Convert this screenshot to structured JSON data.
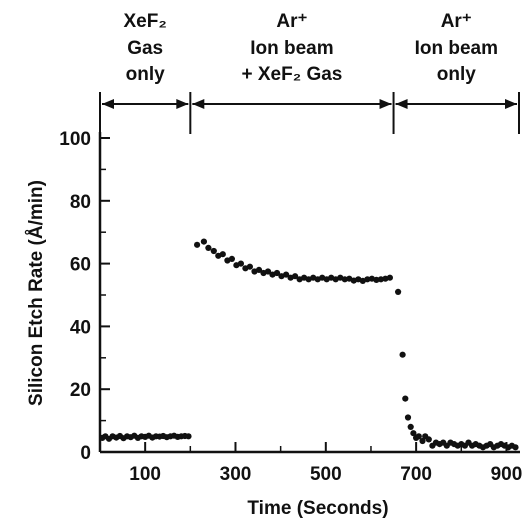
{
  "chart_data": {
    "type": "scatter",
    "xlabel": "Time (Seconds)",
    "ylabel": "Silicon Etch Rate (Å/min)",
    "xlim": [
      0,
      930
    ],
    "ylim": [
      0,
      100
    ],
    "x_ticks": [
      100,
      300,
      500,
      700,
      900
    ],
    "y_ticks": [
      0,
      20,
      40,
      60,
      80,
      100
    ],
    "phase_boundaries": [
      200,
      650
    ],
    "phases": [
      {
        "x_range": [
          0,
          200
        ],
        "lines": [
          "XeF₂",
          "Gas",
          "only"
        ]
      },
      {
        "x_range": [
          200,
          650
        ],
        "lines": [
          "Ar⁺",
          "Ion beam",
          "+ XeF₂ Gas"
        ]
      },
      {
        "x_range": [
          650,
          930
        ],
        "lines": [
          "Ar⁺",
          "Ion beam",
          "only"
        ]
      }
    ],
    "series": [
      {
        "color": "#111111",
        "points": [
          [
            5,
            4.5
          ],
          [
            12,
            5
          ],
          [
            20,
            4.2
          ],
          [
            28,
            5
          ],
          [
            36,
            4.6
          ],
          [
            44,
            5.1
          ],
          [
            52,
            4.4
          ],
          [
            60,
            5
          ],
          [
            68,
            4.7
          ],
          [
            76,
            5.2
          ],
          [
            84,
            4.5
          ],
          [
            92,
            5
          ],
          [
            100,
            4.8
          ],
          [
            108,
            5.2
          ],
          [
            116,
            4.6
          ],
          [
            124,
            5
          ],
          [
            132,
            4.9
          ],
          [
            140,
            5.1
          ],
          [
            148,
            4.7
          ],
          [
            156,
            5
          ],
          [
            164,
            5.2
          ],
          [
            172,
            4.8
          ],
          [
            180,
            5
          ],
          [
            188,
            5.1
          ],
          [
            196,
            5
          ],
          [
            215,
            66
          ],
          [
            230,
            67
          ],
          [
            240,
            65
          ],
          [
            252,
            64
          ],
          [
            262,
            62.5
          ],
          [
            272,
            63
          ],
          [
            282,
            61
          ],
          [
            292,
            61.5
          ],
          [
            302,
            59.5
          ],
          [
            312,
            60
          ],
          [
            322,
            58.5
          ],
          [
            332,
            59
          ],
          [
            342,
            57.5
          ],
          [
            352,
            58
          ],
          [
            362,
            57
          ],
          [
            372,
            57.5
          ],
          [
            382,
            56.5
          ],
          [
            392,
            57
          ],
          [
            402,
            56
          ],
          [
            412,
            56.5
          ],
          [
            422,
            55.5
          ],
          [
            432,
            56
          ],
          [
            442,
            55
          ],
          [
            452,
            55.5
          ],
          [
            462,
            55
          ],
          [
            472,
            55.5
          ],
          [
            482,
            55
          ],
          [
            492,
            55.5
          ],
          [
            502,
            55
          ],
          [
            512,
            55.5
          ],
          [
            522,
            55
          ],
          [
            532,
            55.5
          ],
          [
            542,
            55
          ],
          [
            552,
            55.2
          ],
          [
            562,
            54.6
          ],
          [
            572,
            55
          ],
          [
            582,
            54.5
          ],
          [
            592,
            55
          ],
          [
            602,
            55.2
          ],
          [
            612,
            54.8
          ],
          [
            622,
            55
          ],
          [
            632,
            55.2
          ],
          [
            642,
            55.5
          ],
          [
            660,
            51
          ],
          [
            670,
            31
          ],
          [
            676,
            17
          ],
          [
            682,
            11
          ],
          [
            688,
            8
          ],
          [
            694,
            6
          ],
          [
            700,
            4.5
          ],
          [
            706,
            5
          ],
          [
            714,
            3.5
          ],
          [
            720,
            5
          ],
          [
            728,
            4
          ],
          [
            736,
            2
          ],
          [
            744,
            3
          ],
          [
            752,
            2.5
          ],
          [
            760,
            3
          ],
          [
            768,
            2
          ],
          [
            776,
            3
          ],
          [
            784,
            2.5
          ],
          [
            792,
            2
          ],
          [
            800,
            2.5
          ],
          [
            808,
            2
          ],
          [
            816,
            3
          ],
          [
            824,
            2
          ],
          [
            832,
            2.5
          ],
          [
            840,
            2
          ],
          [
            848,
            1.5
          ],
          [
            856,
            2
          ],
          [
            864,
            2.5
          ],
          [
            872,
            1.5
          ],
          [
            880,
            2
          ],
          [
            888,
            2.5
          ],
          [
            896,
            2
          ],
          [
            904,
            1.5
          ],
          [
            912,
            2
          ],
          [
            920,
            1.5
          ]
        ]
      }
    ]
  }
}
